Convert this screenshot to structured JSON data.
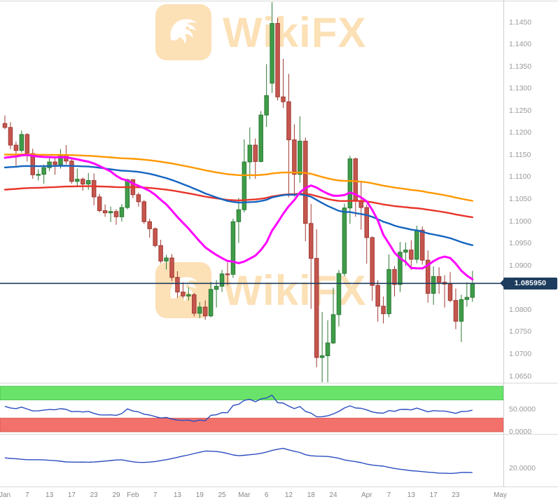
{
  "watermark": {
    "text": "WikiFX",
    "color": "#F6A21E"
  },
  "colors": {
    "bull_fill": "#3F9C49",
    "bull_stroke": "#2C7A35",
    "bear_fill": "#C5564E",
    "bear_stroke": "#9F3B34",
    "price_line": "#1d3c5e",
    "axis_text": "#999999",
    "panel_border": "#d9d9d9",
    "indicator_line": "#2B4DC0"
  },
  "price_axis": {
    "current_price": 1.08595,
    "current_price_label": "1.085950",
    "labels": [
      "1.1450",
      "1.1400",
      "1.1350",
      "1.1300",
      "1.1250",
      "1.1200",
      "1.1150",
      "1.1100",
      "1.1050",
      "1.1000",
      "1.0950",
      "1.0900",
      "1.0800",
      "1.0750",
      "1.0700",
      "1.0650"
    ]
  },
  "time_axis": {
    "ticks": [
      {
        "label": "Jan",
        "i": 0
      },
      {
        "label": "7",
        "i": 4
      },
      {
        "label": "13",
        "i": 8
      },
      {
        "label": "17",
        "i": 12
      },
      {
        "label": "23",
        "i": 16
      },
      {
        "label": "29",
        "i": 20
      },
      {
        "label": "Feb",
        "i": 23
      },
      {
        "label": "7",
        "i": 27
      },
      {
        "label": "13",
        "i": 31
      },
      {
        "label": "19",
        "i": 35
      },
      {
        "label": "25",
        "i": 39
      },
      {
        "label": "Mar",
        "i": 43
      },
      {
        "label": "6",
        "i": 47
      },
      {
        "label": "12",
        "i": 51
      },
      {
        "label": "18",
        "i": 55
      },
      {
        "label": "24",
        "i": 59
      },
      {
        "label": "Apr",
        "i": 65
      },
      {
        "label": "7",
        "i": 69
      },
      {
        "label": "13",
        "i": 73
      },
      {
        "label": "17",
        "i": 77
      },
      {
        "label": "23",
        "i": 81
      },
      {
        "label": "May",
        "i": 89
      }
    ]
  },
  "chart_data": {
    "type": "candlestick",
    "ylim": [
      1.0635,
      1.15
    ],
    "candles": [
      [
        1.1221,
        1.1239,
        1.1208,
        1.1212
      ],
      [
        1.1212,
        1.1224,
        1.1163,
        1.1172
      ],
      [
        1.1172,
        1.118,
        1.1125,
        1.116
      ],
      [
        1.116,
        1.1205,
        1.1155,
        1.1196
      ],
      [
        1.1196,
        1.1199,
        1.1135,
        1.1153
      ],
      [
        1.1153,
        1.1164,
        1.1096,
        1.1105
      ],
      [
        1.1105,
        1.1117,
        1.1092,
        1.1106
      ],
      [
        1.1106,
        1.1128,
        1.1085,
        1.1121
      ],
      [
        1.1121,
        1.1145,
        1.1113,
        1.1134
      ],
      [
        1.1134,
        1.1146,
        1.1105,
        1.1128
      ],
      [
        1.1128,
        1.1163,
        1.1119,
        1.115
      ],
      [
        1.115,
        1.1172,
        1.1129,
        1.1136
      ],
      [
        1.1136,
        1.1141,
        1.1085,
        1.109
      ],
      [
        1.109,
        1.1119,
        1.1077,
        1.1095
      ],
      [
        1.1095,
        1.1099,
        1.1069,
        1.1084
      ],
      [
        1.1084,
        1.1109,
        1.1071,
        1.1092
      ],
      [
        1.1092,
        1.1108,
        1.1036,
        1.1055
      ],
      [
        1.1055,
        1.1062,
        1.102,
        1.1024
      ],
      [
        1.1024,
        1.1038,
        1.101,
        1.1019
      ],
      [
        1.1019,
        1.1033,
        1.0998,
        1.1022
      ],
      [
        1.1022,
        1.1027,
        1.0992,
        1.101
      ],
      [
        1.101,
        1.1039,
        1.0999,
        1.1031
      ],
      [
        1.1031,
        1.1096,
        1.1027,
        1.1094
      ],
      [
        1.1094,
        1.1095,
        1.1052,
        1.106
      ],
      [
        1.106,
        1.1065,
        1.1033,
        1.1044
      ],
      [
        1.1044,
        1.1048,
        1.0994,
        1.0999
      ],
      [
        1.0999,
        1.1006,
        1.0963,
        1.0983
      ],
      [
        1.0983,
        1.0986,
        1.0941,
        1.0945
      ],
      [
        1.0945,
        1.0958,
        1.0905,
        1.091
      ],
      [
        1.091,
        1.0924,
        1.0891,
        1.0917
      ],
      [
        1.0917,
        1.0926,
        1.0865,
        1.0873
      ],
      [
        1.0873,
        1.0887,
        1.0827,
        1.084
      ],
      [
        1.084,
        1.0862,
        1.0826,
        1.0831
      ],
      [
        1.0831,
        1.0851,
        1.0821,
        1.0834
      ],
      [
        1.0834,
        1.0838,
        1.0785,
        1.0792
      ],
      [
        1.0792,
        1.0817,
        1.0781,
        1.0806
      ],
      [
        1.0806,
        1.0821,
        1.0777,
        1.0786
      ],
      [
        1.0786,
        1.0863,
        1.0783,
        1.0846
      ],
      [
        1.0846,
        1.0867,
        1.0805,
        1.0853
      ],
      [
        1.0853,
        1.089,
        1.084,
        1.0881
      ],
      [
        1.0881,
        1.0907,
        1.0855,
        1.088
      ],
      [
        1.088,
        1.1006,
        1.0872,
        1.0999
      ],
      [
        1.0999,
        1.1053,
        1.0951,
        1.1026
      ],
      [
        1.1026,
        1.1185,
        1.102,
        1.1134
      ],
      [
        1.1134,
        1.1212,
        1.1095,
        1.1172
      ],
      [
        1.1172,
        1.1187,
        1.1096,
        1.1135
      ],
      [
        1.1135,
        1.1249,
        1.1133,
        1.124
      ],
      [
        1.124,
        1.1355,
        1.1213,
        1.1284
      ],
      [
        1.1312,
        1.1495,
        1.129,
        1.1447
      ],
      [
        1.1447,
        1.146,
        1.1273,
        1.1281
      ],
      [
        1.1281,
        1.1367,
        1.1256,
        1.127
      ],
      [
        1.127,
        1.1333,
        1.1054,
        1.1184
      ],
      [
        1.1184,
        1.1219,
        1.1055,
        1.1106
      ],
      [
        1.1106,
        1.1237,
        1.1087,
        1.1181
      ],
      [
        1.1181,
        1.1189,
        1.0955,
        1.0995
      ],
      [
        1.0995,
        1.1039,
        1.0802,
        1.0916
      ],
      [
        1.0916,
        1.0982,
        1.067,
        1.0692
      ],
      [
        1.0692,
        1.0795,
        1.0636,
        1.0696
      ],
      [
        1.0696,
        1.0776,
        1.0636,
        1.0725
      ],
      [
        1.0725,
        1.085,
        1.0722,
        1.0789
      ],
      [
        1.0789,
        1.089,
        1.0762,
        1.0882
      ],
      [
        1.0882,
        1.104,
        1.0876,
        1.103
      ],
      [
        1.103,
        1.1148,
        1.0994,
        1.1141
      ],
      [
        1.1141,
        1.1144,
        1.101,
        1.1047
      ],
      [
        1.1047,
        1.1088,
        1.0981,
        1.1031
      ],
      [
        1.1031,
        1.1038,
        1.0904,
        1.0963
      ],
      [
        1.0963,
        1.0966,
        1.082,
        1.0855
      ],
      [
        1.0855,
        1.0867,
        1.0773,
        1.0808
      ],
      [
        1.0808,
        1.083,
        1.0769,
        1.0791
      ],
      [
        1.0791,
        1.0925,
        1.0783,
        1.0891
      ],
      [
        1.0891,
        1.0899,
        1.083,
        1.0857
      ],
      [
        1.0857,
        1.0953,
        1.084,
        1.093
      ],
      [
        1.093,
        1.0952,
        1.0899,
        1.0935
      ],
      [
        1.0935,
        1.0957,
        1.089,
        1.0914
      ],
      [
        1.0914,
        1.099,
        1.0905,
        1.098
      ],
      [
        1.098,
        1.0988,
        1.0902,
        1.0912
      ],
      [
        1.0912,
        1.0934,
        1.0816,
        1.0837
      ],
      [
        1.0837,
        1.0898,
        1.0811,
        1.0875
      ],
      [
        1.0875,
        1.0896,
        1.0836,
        1.0862
      ],
      [
        1.0862,
        1.0878,
        1.0805,
        1.0858
      ],
      [
        1.0858,
        1.0885,
        1.0817,
        1.0821
      ],
      [
        1.0821,
        1.0848,
        1.0756,
        1.0774
      ],
      [
        1.0774,
        1.0834,
        1.0727,
        1.0823
      ],
      [
        1.0823,
        1.0862,
        1.0807,
        1.0828
      ],
      [
        1.0828,
        1.0888,
        1.0818,
        1.086
      ]
    ],
    "overlays": [
      {
        "name": "ma-slow-orange",
        "color": "#FF9800",
        "period": 130,
        "seed": 1.115,
        "width": 2.4
      },
      {
        "name": "ma-red",
        "color": "#E8352B",
        "period": 110,
        "seed": 1.107,
        "width": 2.4
      },
      {
        "name": "ma-blue",
        "color": "#1565C0",
        "period": 60,
        "seed": 1.112,
        "width": 2.4
      },
      {
        "name": "ma-fast-magenta",
        "color": "#FF00FF",
        "period": 20,
        "seed": 1.114,
        "width": 3
      }
    ],
    "panels": [
      {
        "name": "RSI",
        "indicator": "rsi",
        "period": 14,
        "range": [
          0,
          100
        ],
        "line_color": "#2B4DC0",
        "seed_avg_gain": 0.0024,
        "seed_avg_loss": 0.0019,
        "zones": [
          {
            "from": 70,
            "to": 100,
            "color": "#69E369",
            "edge": "#3FBF3F"
          },
          {
            "from": 0,
            "to": 30,
            "color": "#F2716B",
            "edge": "#D4524B"
          }
        ],
        "axis_labels": [
          {
            "value": 50,
            "text": "50.0000"
          },
          {
            "value": 0,
            "text": "0.0000"
          }
        ]
      },
      {
        "name": "ADX",
        "indicator": "adx",
        "period": 14,
        "range": [
          0,
          60
        ],
        "line_color": "#2B4DC0",
        "seed_tr": 0.006,
        "seed_plus_dm": 0.0016,
        "seed_minus_dm": 0.0022,
        "seed_adx": 34,
        "zones": [],
        "axis_labels": [
          {
            "value": 20,
            "text": "20.0000"
          }
        ]
      }
    ]
  }
}
